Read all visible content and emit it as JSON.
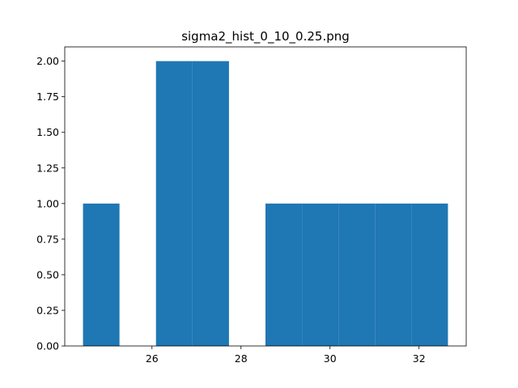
{
  "chart_data": {
    "type": "bar",
    "title": "sigma2_hist_0_10_0.25.png",
    "xlabel": "",
    "ylabel": "",
    "bar_color": "#1f77b4",
    "bins": [
      {
        "x_start": 24.45,
        "x_end": 25.27,
        "count": 1
      },
      {
        "x_start": 25.27,
        "x_end": 26.09,
        "count": 0
      },
      {
        "x_start": 26.09,
        "x_end": 26.91,
        "count": 2
      },
      {
        "x_start": 26.91,
        "x_end": 27.73,
        "count": 2
      },
      {
        "x_start": 27.73,
        "x_end": 28.55,
        "count": 0
      },
      {
        "x_start": 28.55,
        "x_end": 29.37,
        "count": 1
      },
      {
        "x_start": 29.37,
        "x_end": 30.19,
        "count": 1
      },
      {
        "x_start": 30.19,
        "x_end": 31.01,
        "count": 1
      },
      {
        "x_start": 31.01,
        "x_end": 31.83,
        "count": 1
      },
      {
        "x_start": 31.83,
        "x_end": 32.65,
        "count": 1
      }
    ],
    "xlim": [
      24.04,
      33.06
    ],
    "ylim": [
      0,
      2.1
    ],
    "x_ticks": [
      26,
      28,
      30,
      32
    ],
    "x_tick_labels": [
      "26",
      "28",
      "30",
      "32"
    ],
    "y_ticks": [
      0,
      0.25,
      0.5,
      0.75,
      1.0,
      1.25,
      1.5,
      1.75,
      2.0
    ],
    "y_tick_labels": [
      "0.00",
      "0.25",
      "0.50",
      "0.75",
      "1.00",
      "1.25",
      "1.50",
      "1.75",
      "2.00"
    ],
    "grid": false,
    "legend": "none"
  }
}
